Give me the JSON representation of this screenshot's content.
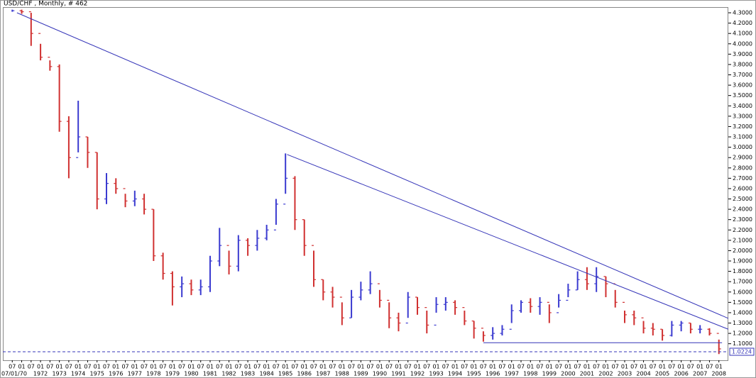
{
  "chart_data": {
    "type": "ohlc",
    "title": "USD/CHF , Monthly, # 462",
    "x": [
      "1970-07",
      "1971-01",
      "1971-07",
      "1972-01",
      "1972-07",
      "1973-01",
      "1973-07",
      "1974-01",
      "1974-07",
      "1975-01",
      "1975-07",
      "1976-01",
      "1976-07",
      "1977-01",
      "1977-07",
      "1978-01",
      "1978-07",
      "1979-01",
      "1979-07",
      "1980-01",
      "1980-07",
      "1981-01",
      "1981-07",
      "1982-01",
      "1982-07",
      "1983-01",
      "1983-07",
      "1984-01",
      "1984-07",
      "1985-01",
      "1985-07",
      "1986-01",
      "1986-07",
      "1987-01",
      "1987-07",
      "1988-01",
      "1988-07",
      "1989-01",
      "1989-07",
      "1990-01",
      "1990-07",
      "1991-01",
      "1991-07",
      "1992-01",
      "1992-07",
      "1993-01",
      "1993-07",
      "1994-01",
      "1994-07",
      "1995-01",
      "1995-07",
      "1996-01",
      "1996-07",
      "1997-01",
      "1997-07",
      "1998-01",
      "1998-07",
      "1999-01",
      "1999-07",
      "2000-01",
      "2000-07",
      "2001-01",
      "2001-07",
      "2002-01",
      "2002-07",
      "2003-01",
      "2003-07",
      "2004-01",
      "2004-07",
      "2005-01",
      "2005-07",
      "2006-01",
      "2006-07",
      "2007-01",
      "2007-07",
      "2008-01"
    ],
    "high": [
      4.33,
      4.33,
      4.3,
      4.0,
      3.84,
      3.8,
      3.3,
      3.45,
      3.1,
      2.95,
      2.75,
      2.7,
      2.55,
      2.58,
      2.55,
      2.4,
      1.98,
      1.8,
      1.75,
      1.72,
      1.72,
      1.95,
      2.22,
      2.0,
      2.15,
      2.12,
      2.2,
      2.25,
      2.5,
      2.94,
      2.72,
      2.3,
      2.0,
      1.72,
      1.65,
      1.5,
      1.62,
      1.7,
      1.8,
      1.62,
      1.5,
      1.4,
      1.6,
      1.55,
      1.42,
      1.55,
      1.55,
      1.52,
      1.42,
      1.32,
      1.22,
      1.26,
      1.28,
      1.48,
      1.52,
      1.54,
      1.55,
      1.48,
      1.58,
      1.68,
      1.8,
      1.84,
      1.84,
      1.75,
      1.62,
      1.42,
      1.42,
      1.32,
      1.3,
      1.24,
      1.32,
      1.32,
      1.3,
      1.28,
      1.25,
      1.14
    ],
    "low": [
      4.31,
      4.29,
      3.98,
      3.84,
      3.74,
      3.15,
      2.7,
      2.95,
      2.8,
      2.4,
      2.45,
      2.55,
      2.42,
      2.43,
      2.35,
      1.9,
      1.72,
      1.47,
      1.55,
      1.57,
      1.57,
      1.6,
      1.85,
      1.77,
      1.8,
      1.95,
      2.0,
      2.1,
      2.25,
      2.55,
      2.2,
      1.95,
      1.65,
      1.52,
      1.45,
      1.28,
      1.35,
      1.52,
      1.58,
      1.45,
      1.25,
      1.22,
      1.35,
      1.38,
      1.2,
      1.4,
      1.42,
      1.38,
      1.28,
      1.15,
      1.12,
      1.14,
      1.18,
      1.3,
      1.4,
      1.4,
      1.38,
      1.3,
      1.45,
      1.55,
      1.62,
      1.62,
      1.6,
      1.55,
      1.45,
      1.3,
      1.28,
      1.2,
      1.18,
      1.13,
      1.17,
      1.22,
      1.2,
      1.2,
      1.18,
      1.0
    ],
    "close": [
      4.32,
      4.31,
      4.1,
      3.87,
      3.78,
      3.25,
      2.9,
      3.1,
      2.95,
      2.5,
      2.65,
      2.6,
      2.48,
      2.5,
      2.4,
      1.95,
      1.78,
      1.65,
      1.68,
      1.62,
      1.65,
      1.9,
      2.05,
      1.85,
      2.1,
      2.05,
      2.12,
      2.2,
      2.45,
      2.7,
      2.3,
      2.05,
      1.72,
      1.6,
      1.55,
      1.35,
      1.55,
      1.62,
      1.68,
      1.52,
      1.35,
      1.3,
      1.55,
      1.45,
      1.28,
      1.48,
      1.5,
      1.45,
      1.32,
      1.25,
      1.18,
      1.2,
      1.24,
      1.42,
      1.5,
      1.46,
      1.5,
      1.4,
      1.52,
      1.62,
      1.72,
      1.68,
      1.75,
      1.68,
      1.5,
      1.38,
      1.35,
      1.25,
      1.24,
      1.18,
      1.28,
      1.3,
      1.24,
      1.24,
      1.2,
      1.05
    ],
    "colors": {
      "up": "#3a3ad0",
      "down": "#d03030",
      "trendline": "#3434b8"
    },
    "xlim": [
      "1970-01",
      "2008-07"
    ],
    "ylim": [
      0.94,
      4.355
    ],
    "yticks": [
      {
        "value": 1.1,
        "label": "1.1000"
      },
      {
        "value": 1.2,
        "label": "1.2000"
      },
      {
        "value": 1.3,
        "label": "1.3000"
      },
      {
        "value": 1.4,
        "label": "1.4000"
      },
      {
        "value": 1.5,
        "label": "1.5000"
      },
      {
        "value": 1.6,
        "label": "1.6000"
      },
      {
        "value": 1.7,
        "label": "1.7000"
      },
      {
        "value": 1.8,
        "label": "1.8000"
      },
      {
        "value": 1.9,
        "label": "1.9000"
      },
      {
        "value": 2.0,
        "label": "2.0000"
      },
      {
        "value": 2.1,
        "label": "2.1000"
      },
      {
        "value": 2.2,
        "label": "2.2000"
      },
      {
        "value": 2.3,
        "label": "2.3000"
      },
      {
        "value": 2.4,
        "label": "2.4000"
      },
      {
        "value": 2.5,
        "label": "2.5000"
      },
      {
        "value": 2.6,
        "label": "2.6000"
      },
      {
        "value": 2.7,
        "label": "2.7000"
      },
      {
        "value": 2.8,
        "label": "2.8000"
      },
      {
        "value": 2.9,
        "label": "2.9000"
      },
      {
        "value": 3.0,
        "label": "3.0000"
      },
      {
        "value": 3.1,
        "label": "3.1000"
      },
      {
        "value": 3.2,
        "label": "3.2000"
      },
      {
        "value": 3.3,
        "label": "3.3000"
      },
      {
        "value": 3.4,
        "label": "3.4000"
      },
      {
        "value": 3.5,
        "label": "3.5000"
      },
      {
        "value": 3.6,
        "label": "3.6000"
      },
      {
        "value": 3.7,
        "label": "3.7000"
      },
      {
        "value": 3.8,
        "label": "3.8000"
      },
      {
        "value": 3.9,
        "label": "3.9000"
      },
      {
        "value": 4.0,
        "label": "4.0000"
      },
      {
        "value": 4.1,
        "label": "4.1000"
      },
      {
        "value": 4.2,
        "label": "4.2000"
      },
      {
        "value": 4.3,
        "label": "4.3000"
      }
    ],
    "xticks": [
      {
        "value": "1970-07",
        "label": "07"
      },
      {
        "value": "1971-01",
        "label": "01"
      },
      {
        "value": "1971-07",
        "label": "07"
      },
      {
        "value": "1972-01",
        "label": "01"
      },
      {
        "value": "1972-07",
        "label": "07"
      },
      {
        "value": "1973-01",
        "label": "01"
      },
      {
        "value": "1973-07",
        "label": "07"
      },
      {
        "value": "1974-01",
        "label": "01"
      },
      {
        "value": "1974-07",
        "label": "07"
      },
      {
        "value": "1975-01",
        "label": "01"
      },
      {
        "value": "1975-07",
        "label": "07"
      },
      {
        "value": "1976-01",
        "label": "01"
      },
      {
        "value": "1976-07",
        "label": "07"
      },
      {
        "value": "1977-01",
        "label": "01"
      },
      {
        "value": "1977-07",
        "label": "07"
      },
      {
        "value": "1978-01",
        "label": "01"
      },
      {
        "value": "1978-07",
        "label": "07"
      },
      {
        "value": "1979-01",
        "label": "01"
      },
      {
        "value": "1979-07",
        "label": "07"
      },
      {
        "value": "1980-01",
        "label": "01"
      },
      {
        "value": "1980-07",
        "label": "07"
      },
      {
        "value": "1981-01",
        "label": "01"
      },
      {
        "value": "1981-07",
        "label": "07"
      },
      {
        "value": "1982-01",
        "label": "01"
      },
      {
        "value": "1982-07",
        "label": "07"
      },
      {
        "value": "1983-01",
        "label": "01"
      },
      {
        "value": "1983-07",
        "label": "07"
      },
      {
        "value": "1984-01",
        "label": "01"
      },
      {
        "value": "1984-07",
        "label": "07"
      },
      {
        "value": "1985-01",
        "label": "01"
      },
      {
        "value": "1985-07",
        "label": "07"
      },
      {
        "value": "1986-01",
        "label": "01"
      },
      {
        "value": "1986-07",
        "label": "07"
      },
      {
        "value": "1987-01",
        "label": "01"
      },
      {
        "value": "1987-07",
        "label": "07"
      },
      {
        "value": "1988-01",
        "label": "01"
      },
      {
        "value": "1988-07",
        "label": "07"
      },
      {
        "value": "1989-01",
        "label": "01"
      },
      {
        "value": "1989-07",
        "label": "07"
      },
      {
        "value": "1990-01",
        "label": "01"
      },
      {
        "value": "1990-07",
        "label": "07"
      },
      {
        "value": "1991-01",
        "label": "01"
      },
      {
        "value": "1991-07",
        "label": "07"
      },
      {
        "value": "1992-01",
        "label": "01"
      },
      {
        "value": "1992-07",
        "label": "07"
      },
      {
        "value": "1993-01",
        "label": "01"
      },
      {
        "value": "1993-07",
        "label": "07"
      },
      {
        "value": "1994-01",
        "label": "01"
      },
      {
        "value": "1994-07",
        "label": "07"
      },
      {
        "value": "1995-01",
        "label": "01"
      },
      {
        "value": "1995-07",
        "label": "07"
      },
      {
        "value": "1996-01",
        "label": "01"
      },
      {
        "value": "1996-07",
        "label": "07"
      },
      {
        "value": "1997-01",
        "label": "01"
      },
      {
        "value": "1997-07",
        "label": "07"
      },
      {
        "value": "1998-01",
        "label": "01"
      },
      {
        "value": "1998-07",
        "label": "07"
      },
      {
        "value": "1999-01",
        "label": "01"
      },
      {
        "value": "1999-07",
        "label": "07"
      },
      {
        "value": "2000-01",
        "label": "01"
      },
      {
        "value": "2000-07",
        "label": "07"
      },
      {
        "value": "2001-01",
        "label": "01"
      },
      {
        "value": "2001-07",
        "label": "07"
      },
      {
        "value": "2002-01",
        "label": "01"
      },
      {
        "value": "2002-07",
        "label": "07"
      },
      {
        "value": "2003-01",
        "label": "01"
      },
      {
        "value": "2003-07",
        "label": "07"
      },
      {
        "value": "2004-01",
        "label": "01"
      },
      {
        "value": "2004-07",
        "label": "07"
      },
      {
        "value": "2005-01",
        "label": "01"
      },
      {
        "value": "2005-07",
        "label": "07"
      },
      {
        "value": "2006-01",
        "label": "01"
      },
      {
        "value": "2006-07",
        "label": "07"
      },
      {
        "value": "2007-01",
        "label": "01"
      },
      {
        "value": "2007-07",
        "label": "07"
      },
      {
        "value": "2008-01",
        "label": "01"
      }
    ],
    "year_ticks": [
      {
        "value": "1970-07",
        "label": "07/01/70"
      },
      {
        "value": "1972-01",
        "label": "1972"
      },
      {
        "value": "1973-01",
        "label": "1973"
      },
      {
        "value": "1974-01",
        "label": "1974"
      },
      {
        "value": "1975-01",
        "label": "1975"
      },
      {
        "value": "1976-01",
        "label": "1976"
      },
      {
        "value": "1977-01",
        "label": "1977"
      },
      {
        "value": "1978-01",
        "label": "1978"
      },
      {
        "value": "1979-01",
        "label": "1979"
      },
      {
        "value": "1980-01",
        "label": "1980"
      },
      {
        "value": "1981-01",
        "label": "1981"
      },
      {
        "value": "1982-01",
        "label": "1982"
      },
      {
        "value": "1983-01",
        "label": "1983"
      },
      {
        "value": "1984-01",
        "label": "1984"
      },
      {
        "value": "1985-01",
        "label": "1985"
      },
      {
        "value": "1986-01",
        "label": "1986"
      },
      {
        "value": "1987-01",
        "label": "1987"
      },
      {
        "value": "1988-01",
        "label": "1988"
      },
      {
        "value": "1989-01",
        "label": "1989"
      },
      {
        "value": "1990-01",
        "label": "1990"
      },
      {
        "value": "1991-01",
        "label": "1991"
      },
      {
        "value": "1992-01",
        "label": "1992"
      },
      {
        "value": "1993-01",
        "label": "1993"
      },
      {
        "value": "1994-01",
        "label": "1994"
      },
      {
        "value": "1995-01",
        "label": "1995"
      },
      {
        "value": "1996-01",
        "label": "1996"
      },
      {
        "value": "1997-01",
        "label": "1997"
      },
      {
        "value": "1998-01",
        "label": "1998"
      },
      {
        "value": "1999-01",
        "label": "1999"
      },
      {
        "value": "2000-01",
        "label": "2000"
      },
      {
        "value": "2001-01",
        "label": "2001"
      },
      {
        "value": "2002-01",
        "label": "2002"
      },
      {
        "value": "2003-01",
        "label": "2003"
      },
      {
        "value": "2004-01",
        "label": "2004"
      },
      {
        "value": "2005-01",
        "label": "2005"
      },
      {
        "value": "2006-01",
        "label": "2006"
      },
      {
        "value": "2007-01",
        "label": "2007"
      },
      {
        "value": "2008-01",
        "label": "2008"
      }
    ],
    "trendlines": [
      {
        "x": [
          "1970-10",
          "2008-07"
        ],
        "y": [
          4.3,
          1.345
        ]
      },
      {
        "x": [
          "1985-02",
          "2008-07"
        ],
        "y": [
          2.93,
          1.24
        ]
      },
      {
        "x": [
          "1995-07",
          "2008-03"
        ],
        "y": [
          1.11,
          1.11
        ]
      }
    ],
    "last_price": {
      "value": 1.0224,
      "label": "1.0224"
    }
  }
}
